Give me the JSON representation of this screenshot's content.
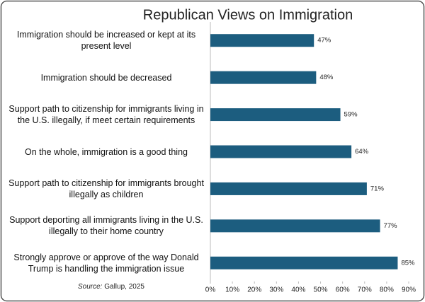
{
  "chart_data": {
    "type": "bar",
    "orientation": "horizontal",
    "title": "Republican Views on Immigration",
    "categories": [
      "Immigration should be increased or kept at its present level",
      "Immigration should be decreased",
      "Support path to citizenship for immigrants living in the U.S. illegally, if meet certain requirements",
      "On the whole,  immigration is a good thing",
      "Support path to citizenship for immigrants brought illegally as children",
      "Support deporting all immigrants living in the U.S. illegally to their home country",
      "Strongly approve or approve of the way Donald Trump is handling the immigration issue"
    ],
    "values": [
      47,
      48,
      59,
      64,
      71,
      77,
      85
    ],
    "value_labels": [
      "47%",
      "48%",
      "59%",
      "64%",
      "71%",
      "77%",
      "85%"
    ],
    "color": "#1c5d7f",
    "xlim": [
      0,
      90
    ],
    "xticks": [
      {
        "value": 0,
        "label": "0%"
      },
      {
        "value": 10,
        "label": "10%"
      },
      {
        "value": 20,
        "label": "20%"
      },
      {
        "value": 30,
        "label": "30%"
      },
      {
        "value": 40,
        "label": "40%"
      },
      {
        "value": 50,
        "label": "50%"
      },
      {
        "value": 60,
        "label": "60%"
      },
      {
        "value": 70,
        "label": "70%"
      },
      {
        "value": 80,
        "label": "80%"
      },
      {
        "value": 90,
        "label": "90%"
      }
    ],
    "source_label": "Source:",
    "source": "Gallup, 2025"
  }
}
